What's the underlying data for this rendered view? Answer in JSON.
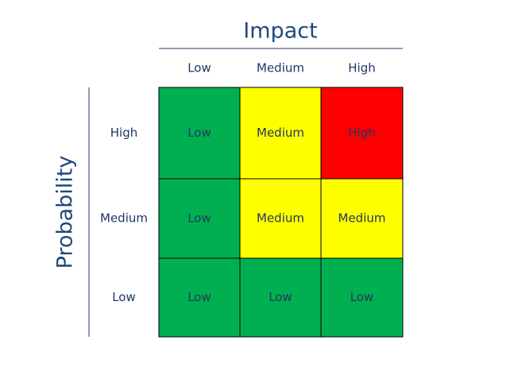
{
  "title": "Impact",
  "side_label": "Probability",
  "columns": [
    "Low",
    "Medium",
    "High"
  ],
  "rows": [
    {
      "label": "High",
      "cells": [
        {
          "label": "Low",
          "color": "#00b050"
        },
        {
          "label": "Medium",
          "color": "#ffff00"
        },
        {
          "label": "High",
          "color": "#ff0000"
        }
      ]
    },
    {
      "label": "Medium",
      "cells": [
        {
          "label": "Low",
          "color": "#00b050"
        },
        {
          "label": "Medium",
          "color": "#ffff00"
        },
        {
          "label": "Medium",
          "color": "#ffff00"
        }
      ]
    },
    {
      "label": "Low",
      "cells": [
        {
          "label": "Low",
          "color": "#00b050"
        },
        {
          "label": "Low",
          "color": "#00b050"
        },
        {
          "label": "Low",
          "color": "#00b050"
        }
      ]
    }
  ]
}
